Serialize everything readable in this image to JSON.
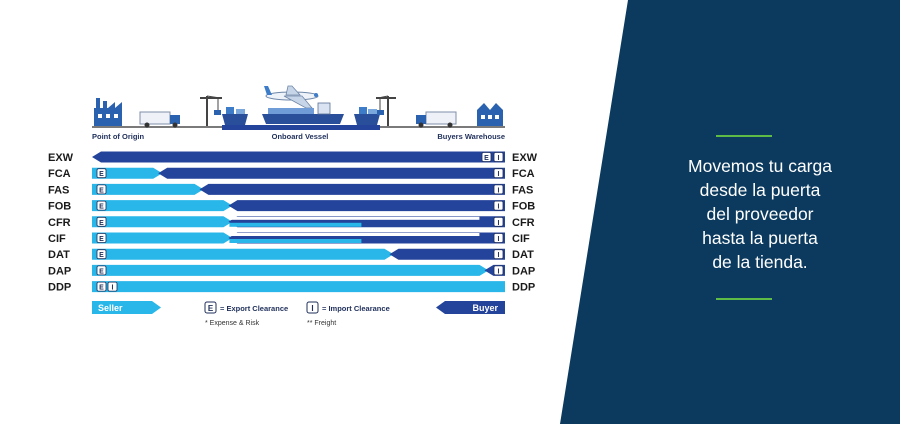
{
  "colors": {
    "panel_bg": "#0b3a5e",
    "dark_blue": "#24439b",
    "light_blue": "#29b6e8",
    "green_accent": "#5dbb46",
    "ground": "#7a7a7a"
  },
  "locations": {
    "origin": "Point of Origin",
    "vessel": "Onboard Vessel",
    "warehouse": "Buyers Warehouse"
  },
  "icons": [
    "factory-icon",
    "truck-icon",
    "crane-icon",
    "cargo-ship-icon",
    "airplane-icon",
    "crane-icon",
    "truck-icon",
    "warehouse-icon"
  ],
  "terms": [
    {
      "code": "EXW",
      "seller_to": 0.0,
      "export_by": "buyer",
      "import_by": "buyer",
      "freight": false
    },
    {
      "code": "FCA",
      "seller_to": 0.17,
      "export_by": "seller",
      "import_by": "buyer",
      "freight": false
    },
    {
      "code": "FAS",
      "seller_to": 0.27,
      "export_by": "seller",
      "import_by": "buyer",
      "freight": false
    },
    {
      "code": "FOB",
      "seller_to": 0.34,
      "export_by": "seller",
      "import_by": "buyer",
      "freight": false
    },
    {
      "code": "CFR",
      "seller_to": 0.34,
      "export_by": "seller",
      "import_by": "buyer",
      "freight": true
    },
    {
      "code": "CIF",
      "seller_to": 0.34,
      "export_by": "seller",
      "import_by": "buyer",
      "freight": true
    },
    {
      "code": "DAT",
      "seller_to": 0.73,
      "export_by": "seller",
      "import_by": "buyer",
      "freight": false
    },
    {
      "code": "DAP",
      "seller_to": 0.96,
      "export_by": "seller",
      "import_by": "buyer",
      "freight": false
    },
    {
      "code": "DDP",
      "seller_to": 1.0,
      "export_by": "seller",
      "import_by": "seller",
      "freight": false
    }
  ],
  "legend": {
    "seller": "Seller",
    "buyer": "Buyer",
    "export_badge": "E",
    "import_badge": "I",
    "export_label": "= Export Clearance",
    "import_label": "= Import Clearance",
    "expense_note": "* Expense & Risk",
    "freight_note": "** Freight"
  },
  "panel": {
    "lines": [
      "Movemos tu carga",
      "desde la puerta",
      "del proveedor",
      "hasta la puerta",
      "de la tienda."
    ]
  }
}
